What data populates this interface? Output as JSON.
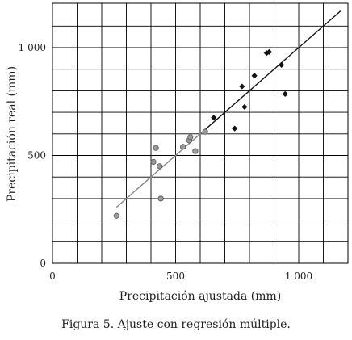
{
  "chart_data": {
    "type": "scatter",
    "title": "",
    "xlabel": "Precipitación ajustada (mm)",
    "ylabel": "Precipitación real (mm)",
    "xlim": [
      0,
      1200
    ],
    "ylim": [
      0,
      1200
    ],
    "grid": true,
    "x_ticks": [
      {
        "value": 0,
        "label": "0"
      },
      {
        "value": 500,
        "label": "500"
      },
      {
        "value": 1000,
        "label": "1 000"
      }
    ],
    "y_ticks": [
      {
        "value": 0,
        "label": "0"
      },
      {
        "value": 500,
        "label": "500"
      },
      {
        "value": 1000,
        "label": "1 000"
      }
    ],
    "series": [
      {
        "marker": "circle",
        "color": "#9a9a9a",
        "points": [
          {
            "x": 260,
            "y": 220
          },
          {
            "x": 410,
            "y": 470
          },
          {
            "x": 420,
            "y": 535
          },
          {
            "x": 435,
            "y": 450
          },
          {
            "x": 440,
            "y": 300
          },
          {
            "x": 530,
            "y": 540
          },
          {
            "x": 555,
            "y": 570
          },
          {
            "x": 560,
            "y": 585
          },
          {
            "x": 580,
            "y": 520
          },
          {
            "x": 620,
            "y": 610
          }
        ]
      },
      {
        "marker": "diamond",
        "color": "#111111",
        "points": [
          {
            "x": 655,
            "y": 675
          },
          {
            "x": 740,
            "y": 625
          },
          {
            "x": 770,
            "y": 820
          },
          {
            "x": 780,
            "y": 725
          },
          {
            "x": 820,
            "y": 870
          },
          {
            "x": 870,
            "y": 975
          },
          {
            "x": 880,
            "y": 980
          },
          {
            "x": 930,
            "y": 920
          },
          {
            "x": 945,
            "y": 785
          }
        ]
      }
    ],
    "regression_lines": [
      {
        "color": "#888888",
        "from": {
          "x": 260,
          "y": 260
        },
        "to": {
          "x": 620,
          "y": 620
        }
      },
      {
        "color": "#111111",
        "from": {
          "x": 620,
          "y": 620
        },
        "to": {
          "x": 1170,
          "y": 1170
        }
      }
    ]
  },
  "caption": "Figura 5. Ajuste con regresión múltiple."
}
